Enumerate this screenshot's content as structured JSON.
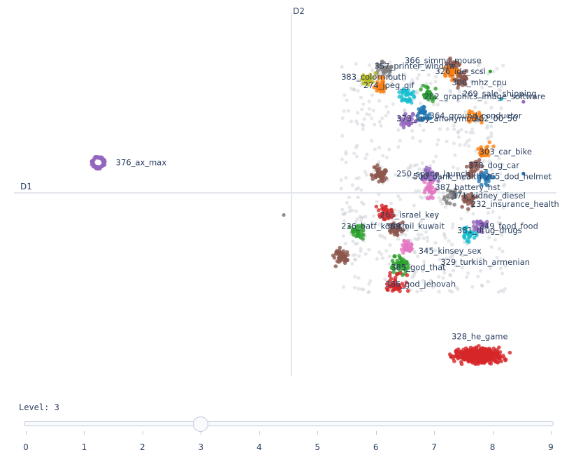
{
  "chart_data": {
    "type": "scatter",
    "xlabel": "D1",
    "ylabel": "D2",
    "colors": [
      "#1f77b4",
      "#ff7f0e",
      "#2ca02c",
      "#d62728",
      "#9467bd",
      "#8c564b",
      "#e377c2",
      "#7f7f7f",
      "#bcbd22",
      "#17becf"
    ],
    "clusters": [
      {
        "label": "376_ax_max",
        "lx": 0.92,
        "ly": 0.55,
        "cx": 0.6,
        "cy": 0.55,
        "spread": 0.12,
        "n": 70,
        "color": "#9467bd",
        "ring": true
      },
      {
        "label": "328_he_game",
        "lx": 7.0,
        "ly": -2.6,
        "cx": 7.5,
        "cy": -2.95,
        "spread": 0.45,
        "n": 380,
        "color": "#d62728"
      },
      {
        "label": "366_simms_mouse",
        "lx": 6.15,
        "ly": 2.4,
        "cx": 7.0,
        "cy": 2.3,
        "spread": 0.2,
        "n": 40,
        "color": "#8c564b"
      },
      {
        "label": "357_printer_window",
        "lx": 5.6,
        "ly": 2.3,
        "cx": 5.8,
        "cy": 2.25,
        "spread": 0.2,
        "n": 35,
        "color": "#7f7f7f"
      },
      {
        "label": "326_ide_scsi",
        "lx": 6.7,
        "ly": 2.2,
        "cx": 7.0,
        "cy": 2.2,
        "spread": 0.2,
        "n": 30,
        "color": "#ff7f0e"
      },
      {
        "label": "383_colormouth",
        "lx": 5.0,
        "ly": 2.1,
        "cx": 5.5,
        "cy": 2.05,
        "spread": 0.2,
        "n": 30,
        "color": "#bcbd22"
      },
      {
        "label": "300_mhz_cpu",
        "lx": 7.0,
        "ly": 2.0,
        "cx": 7.2,
        "cy": 2.05,
        "spread": 0.2,
        "n": 35,
        "color": "#8c564b"
      },
      {
        "label": "274_jpeg_gif",
        "lx": 5.4,
        "ly": 1.95,
        "cx": 5.7,
        "cy": 1.95,
        "spread": 0.18,
        "n": 30,
        "color": "#ff7f0e"
      },
      {
        "label": "269_sale_shipping",
        "lx": 7.2,
        "ly": 1.8,
        "cx": 6.6,
        "cy": 1.8,
        "spread": 0.2,
        "n": 30,
        "color": "#2ca02c"
      },
      {
        "label": "282_graphics_image_software",
        "lx": 6.5,
        "ly": 1.75,
        "cx": 6.2,
        "cy": 1.75,
        "spread": 0.2,
        "n": 35,
        "color": "#17becf"
      },
      {
        "label": "364_ground_conductor",
        "lx": 6.6,
        "ly": 1.4,
        "cx": 6.5,
        "cy": 1.45,
        "spread": 0.2,
        "n": 30,
        "color": "#1f77b4"
      },
      {
        "label": "373_key_anonymous",
        "lx": 6.0,
        "ly": 1.35,
        "cx": 6.2,
        "cy": 1.3,
        "spread": 0.2,
        "n": 30,
        "color": "#9467bd"
      },
      {
        "label": "262_00_50",
        "lx": 7.4,
        "ly": 1.35,
        "cx": 7.4,
        "cy": 1.4,
        "spread": 0.2,
        "n": 25,
        "color": "#ff7f0e"
      },
      {
        "label": "303_car_bike",
        "lx": 7.5,
        "ly": 0.75,
        "cx": 7.6,
        "cy": 0.75,
        "spread": 0.2,
        "n": 30,
        "color": "#ff7f0e"
      },
      {
        "label": "378_dog_car",
        "lx": 7.3,
        "ly": 0.5,
        "cx": 7.4,
        "cy": 0.45,
        "spread": 0.2,
        "n": 30,
        "color": "#8c564b"
      },
      {
        "label": "250_space_launch",
        "lx": 6.0,
        "ly": 0.35,
        "cx": 5.7,
        "cy": 0.35,
        "spread": 0.2,
        "n": 45,
        "color": "#8c564b"
      },
      {
        "label": "500_bank_health",
        "lx": 6.3,
        "ly": 0.3,
        "cx": 6.6,
        "cy": 0.3,
        "spread": 0.2,
        "n": 35,
        "color": "#9467bd"
      },
      {
        "label": "265_dod_helmet",
        "lx": 7.6,
        "ly": 0.3,
        "cx": 7.6,
        "cy": 0.25,
        "spread": 0.2,
        "n": 25,
        "color": "#1f77b4"
      },
      {
        "label": "387_battery_hst",
        "lx": 6.7,
        "ly": 0.1,
        "cx": 6.6,
        "cy": 0.05,
        "spread": 0.2,
        "n": 30,
        "color": "#e377c2"
      },
      {
        "label": "371_kidney_diesel",
        "lx": 7.0,
        "ly": -0.05,
        "cx": 7.0,
        "cy": -0.05,
        "spread": 0.2,
        "n": 25,
        "color": "#7f7f7f"
      },
      {
        "label": "232_insurance_health",
        "lx": 7.35,
        "ly": -0.2,
        "cx": 7.3,
        "cy": -0.15,
        "spread": 0.2,
        "n": 30,
        "color": "#8c564b"
      },
      {
        "label": "263_israel_key",
        "lx": 5.7,
        "ly": -0.4,
        "cx": 5.8,
        "cy": -0.35,
        "spread": 0.2,
        "n": 35,
        "color": "#d62728"
      },
      {
        "label": "236_batf_koresh",
        "lx": 5.0,
        "ly": -0.6,
        "cx": 5.3,
        "cy": -0.7,
        "spread": 0.2,
        "n": 35,
        "color": "#2ca02c"
      },
      {
        "label": "389_oil_kuwait",
        "lx": 5.8,
        "ly": -0.6,
        "cx": 6.0,
        "cy": -0.65,
        "spread": 0.2,
        "n": 30,
        "color": "#8c564b"
      },
      {
        "label": "349_food_food",
        "lx": 7.5,
        "ly": -0.6,
        "cx": 7.5,
        "cy": -0.6,
        "spread": 0.2,
        "n": 30,
        "color": "#9467bd"
      },
      {
        "label": "381_drug_drugs",
        "lx": 7.1,
        "ly": -0.68,
        "cx": 7.3,
        "cy": -0.75,
        "spread": 0.2,
        "n": 30,
        "color": "#17becf"
      },
      {
        "label": "345_kinsey_sex",
        "lx": 6.4,
        "ly": -1.05,
        "cx": 6.2,
        "cy": -1.0,
        "spread": 0.2,
        "n": 30,
        "color": "#e377c2"
      },
      {
        "label": "329_turkish_armenian",
        "lx": 6.8,
        "ly": -1.25,
        "cx": 5.0,
        "cy": -1.15,
        "spread": 0.2,
        "n": 45,
        "color": "#8c564b"
      },
      {
        "label": "385_god_that",
        "lx": 5.9,
        "ly": -1.35,
        "cx": 6.1,
        "cy": -1.3,
        "spread": 0.25,
        "n": 50,
        "color": "#2ca02c"
      },
      {
        "label": "386_god_jehovah",
        "lx": 5.8,
        "ly": -1.65,
        "cx": 6.0,
        "cy": -1.65,
        "spread": 0.25,
        "n": 45,
        "color": "#d62728"
      }
    ],
    "xlim": [
      -5.3,
      4.6
    ],
    "ylim": [
      -3.4,
      3.4
    ]
  },
  "slider": {
    "label": "Level: 3",
    "value": 3,
    "min": 0,
    "max": 9,
    "ticks": [
      "0",
      "1",
      "2",
      "3",
      "4",
      "5",
      "6",
      "7",
      "8",
      "9"
    ]
  }
}
